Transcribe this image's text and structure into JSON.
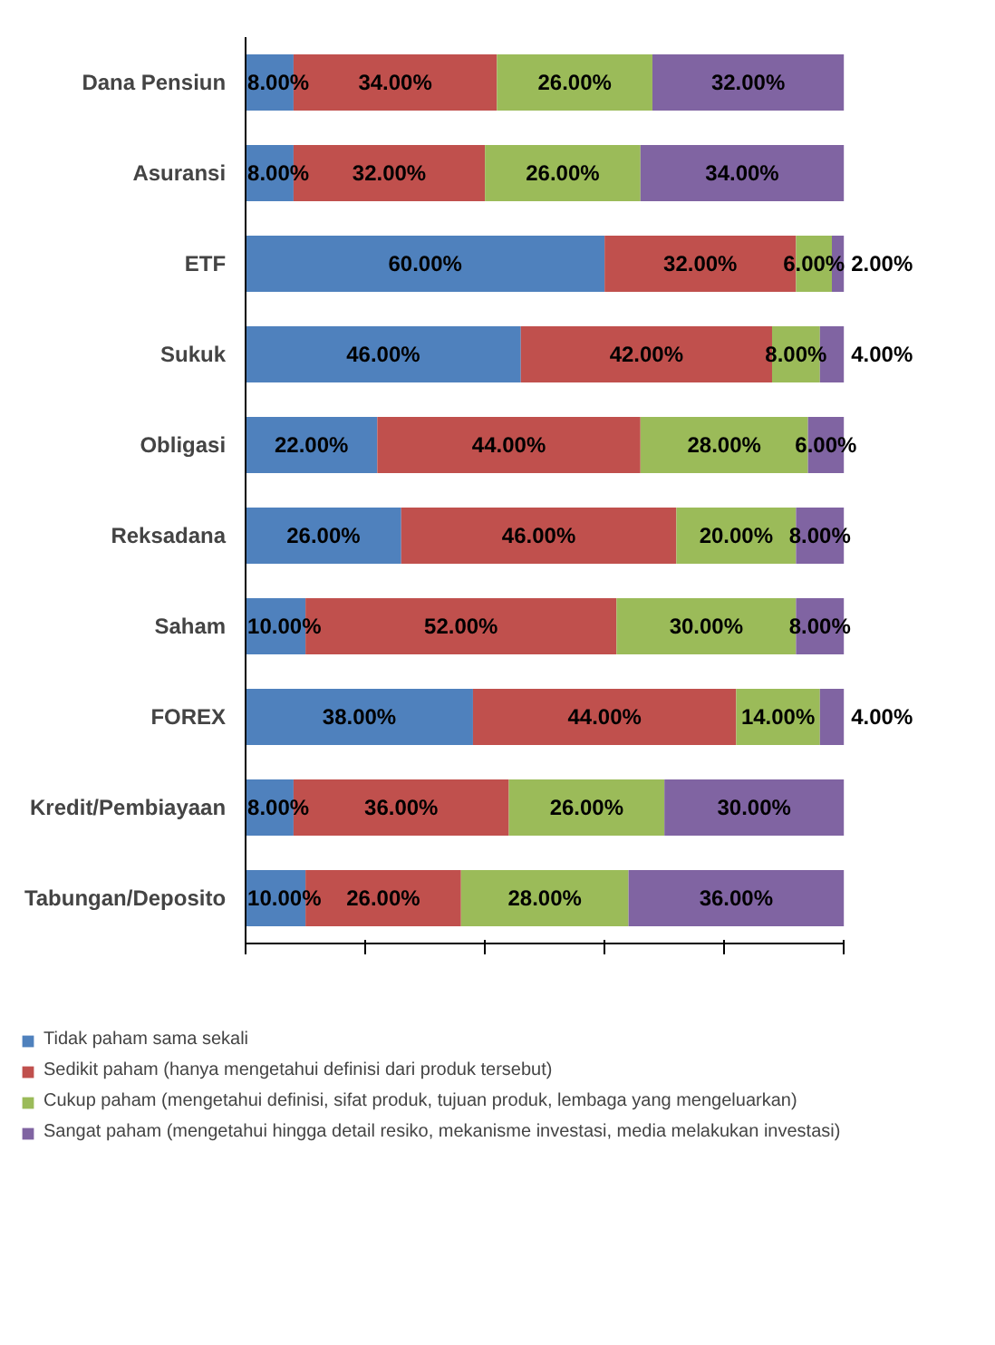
{
  "chart_data": {
    "type": "bar",
    "orientation": "horizontal",
    "stacked": true,
    "categories": [
      "Dana Pensiun",
      "Asuransi",
      "ETF",
      "Sukuk",
      "Obligasi",
      "Reksadana",
      "Saham",
      "FOREX",
      "Kredit/Pembiayaan",
      "Tabungan/Deposito"
    ],
    "series": [
      {
        "name": "Tidak paham sama sekali",
        "color": "#4f81bd",
        "values": [
          8,
          8,
          60,
          46,
          22,
          26,
          10,
          38,
          8,
          10
        ],
        "value_labels": [
          "8.00%",
          "8.00%",
          "60.00%",
          "46.00%",
          "22.00%",
          "26.00%",
          "10.00%",
          "38.00%",
          "8.00%",
          "10.00%"
        ]
      },
      {
        "name": "Sedikit paham (hanya mengetahui definisi dari produk tersebut)",
        "color": "#c0504d",
        "values": [
          34,
          32,
          32,
          42,
          44,
          46,
          52,
          44,
          36,
          26
        ],
        "value_labels": [
          "34.00%",
          "32.00%",
          "32.00%",
          "42.00%",
          "44.00%",
          "46.00%",
          "52.00%",
          "44.00%",
          "36.00%",
          "26.00%"
        ]
      },
      {
        "name": "Cukup paham (mengetahui definisi, sifat produk, tujuan produk, lembaga yang mengeluarkan)",
        "color": "#9bbb59",
        "values": [
          26,
          26,
          6,
          8,
          28,
          20,
          30,
          14,
          26,
          28
        ],
        "value_labels": [
          "26.00%",
          "26.00%",
          "6.00%",
          "8.00%",
          "28.00%",
          "20.00%",
          "30.00%",
          "14.00%",
          "26.00%",
          "28.00%"
        ]
      },
      {
        "name": "Sangat paham (mengetahui hingga detail resiko, mekanisme investasi, media melakukan investasi)",
        "color": "#8064a2",
        "values": [
          32,
          34,
          2,
          4,
          6,
          8,
          8,
          4,
          30,
          36
        ],
        "value_labels": [
          "32.00%",
          "34.00%",
          "2.00%",
          "4.00%",
          "6.00%",
          "8.00%",
          "8.00%",
          "4.00%",
          "30.00%",
          "36.00%"
        ]
      }
    ],
    "xlim": [
      0,
      100
    ],
    "xticks": [
      {
        "value": 0,
        "label": null
      },
      {
        "value": 20,
        "label": null
      },
      {
        "value": 40,
        "label": null
      },
      {
        "value": 60,
        "label": null
      },
      {
        "value": 80,
        "label": null
      },
      {
        "value": 100,
        "label": null
      }
    ],
    "tick_labels": "y",
    "grid": false,
    "legend": "bottom"
  }
}
